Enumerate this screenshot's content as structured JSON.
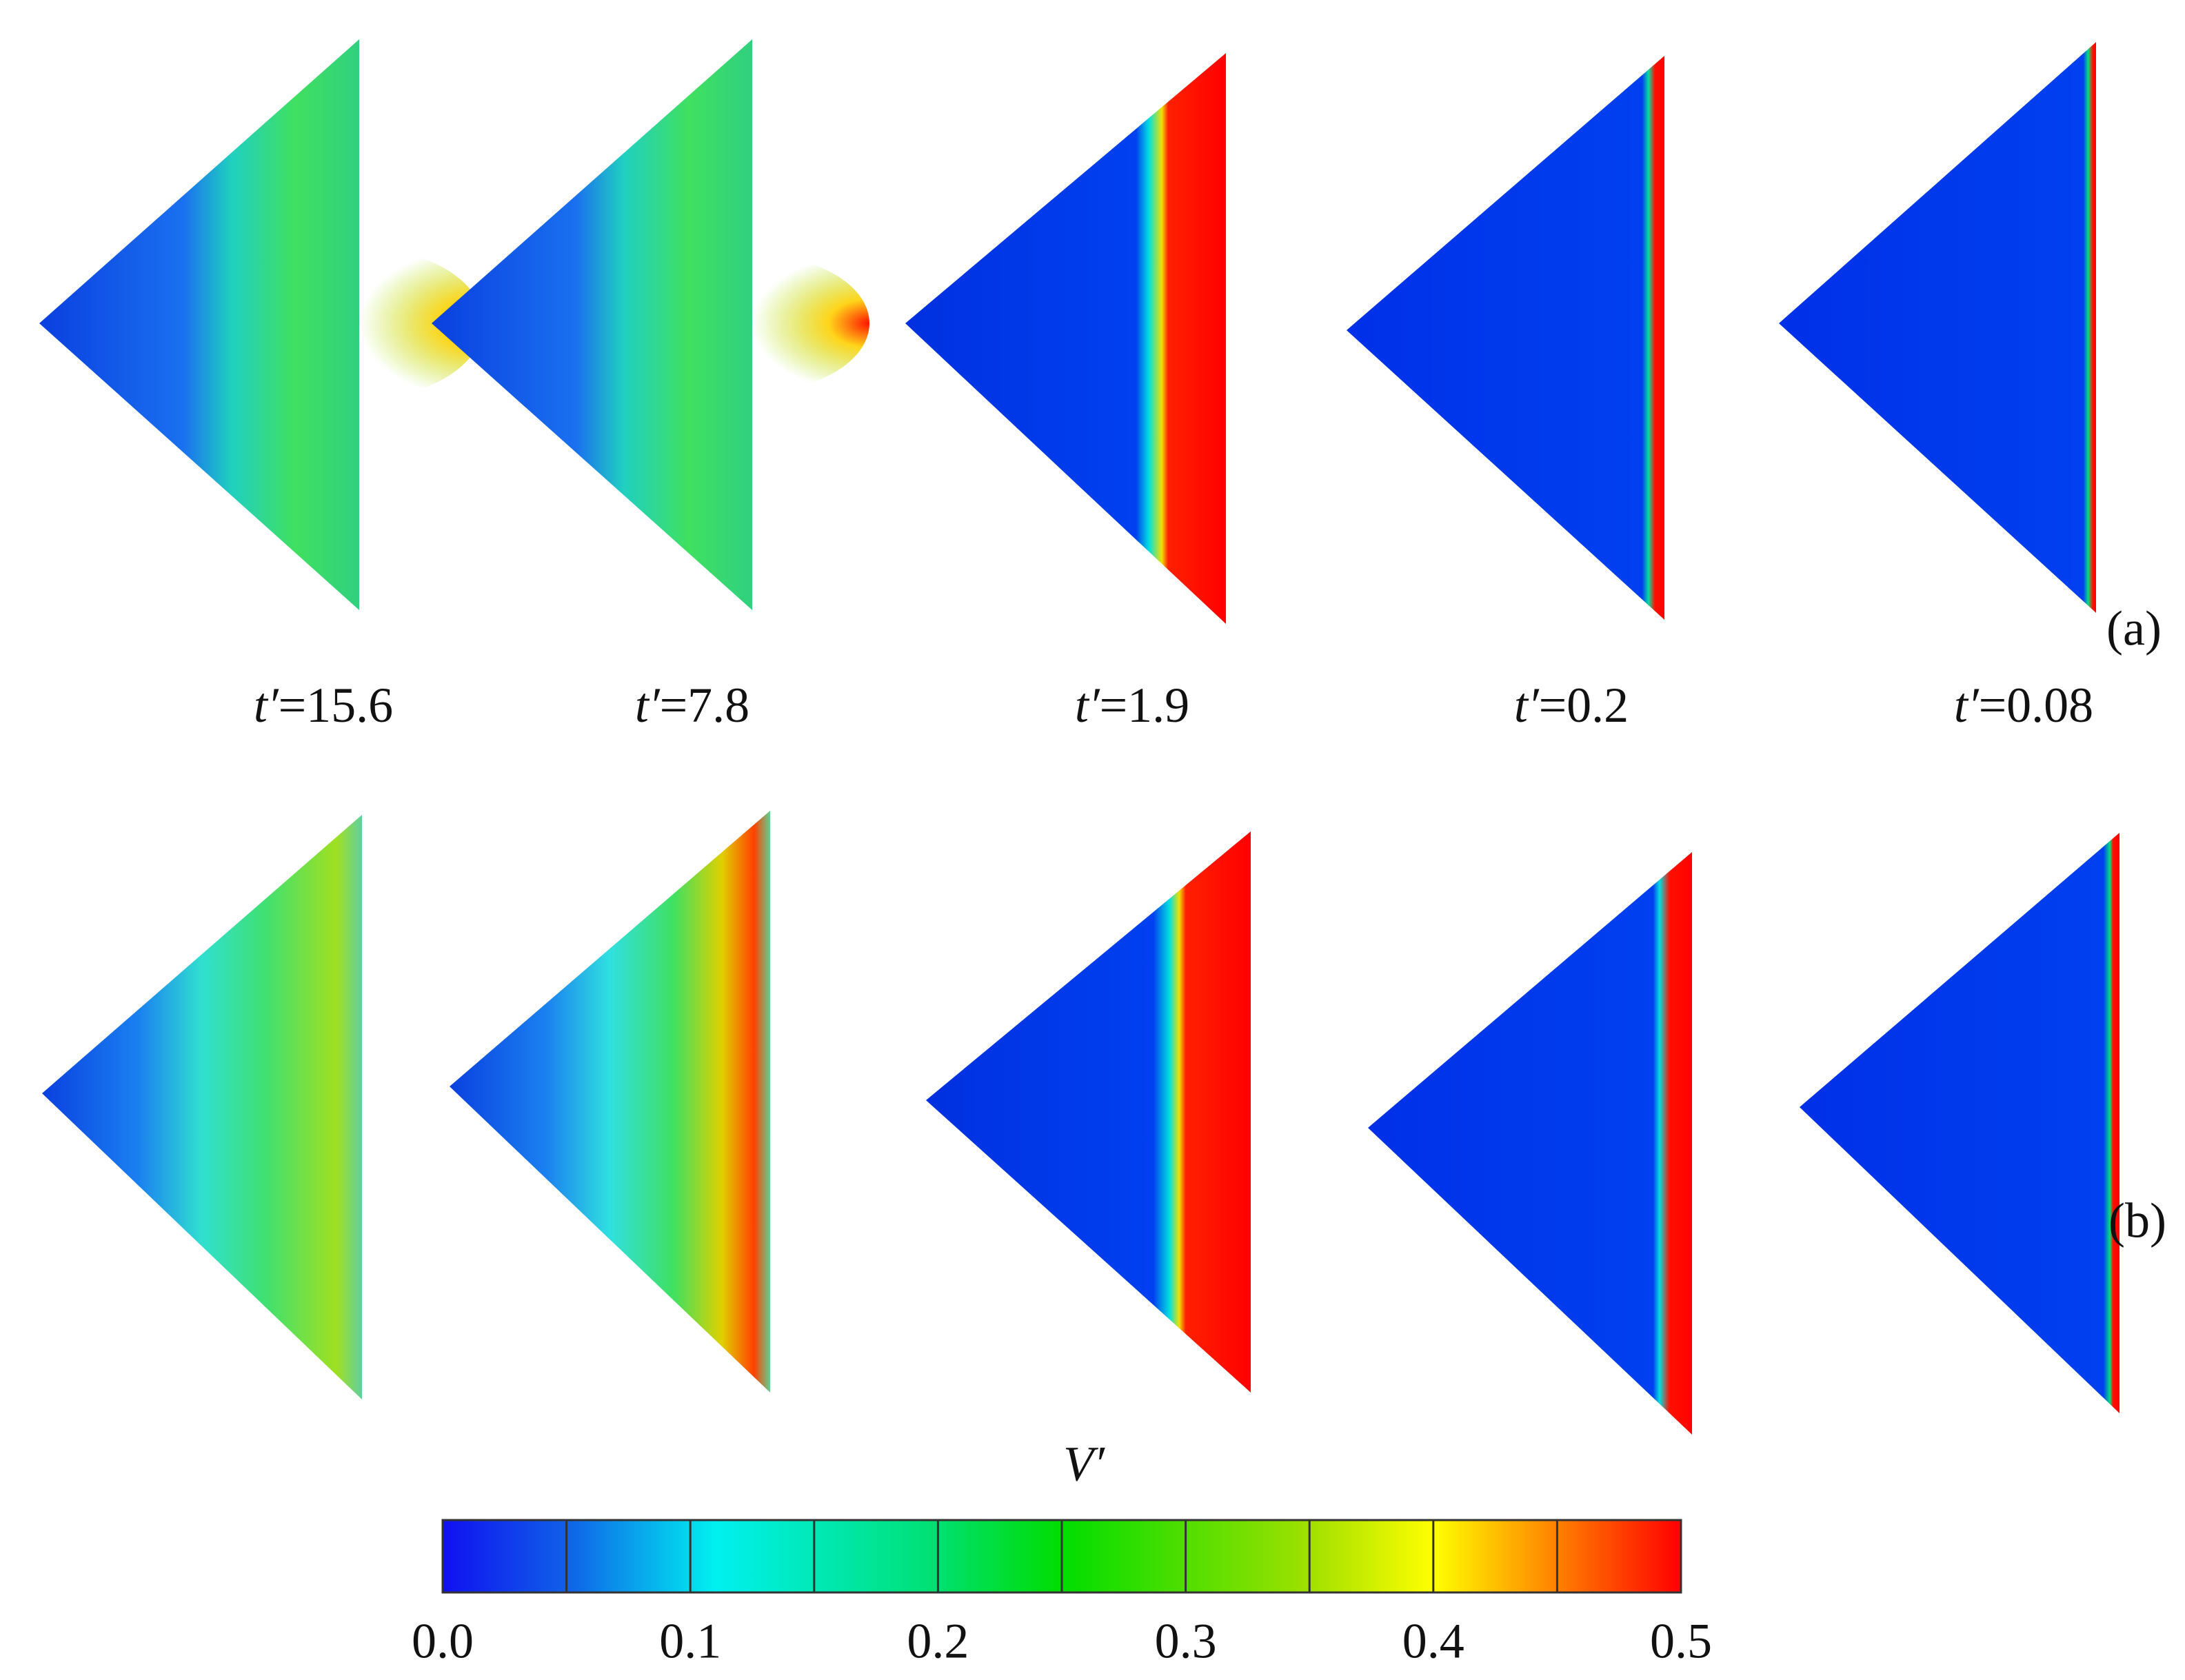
{
  "panels": {
    "a": {
      "label": "(a)"
    },
    "b": {
      "label": "(b)"
    }
  },
  "times": [
    {
      "symbol": "t′",
      "value": "=15.6"
    },
    {
      "symbol": "t′",
      "value": "=7.8"
    },
    {
      "symbol": "t′",
      "value": "=1.9"
    },
    {
      "symbol": "t′",
      "value": "=0.2"
    },
    {
      "symbol": "t′",
      "value": "=0.08"
    }
  ],
  "colorbar": {
    "title": "V′",
    "lim": [
      0,
      0.5
    ],
    "ticks": [
      {
        "value": 0,
        "label": "0.0"
      },
      0.1,
      0.2,
      0.3,
      0.4,
      0.5
    ]
  }
}
